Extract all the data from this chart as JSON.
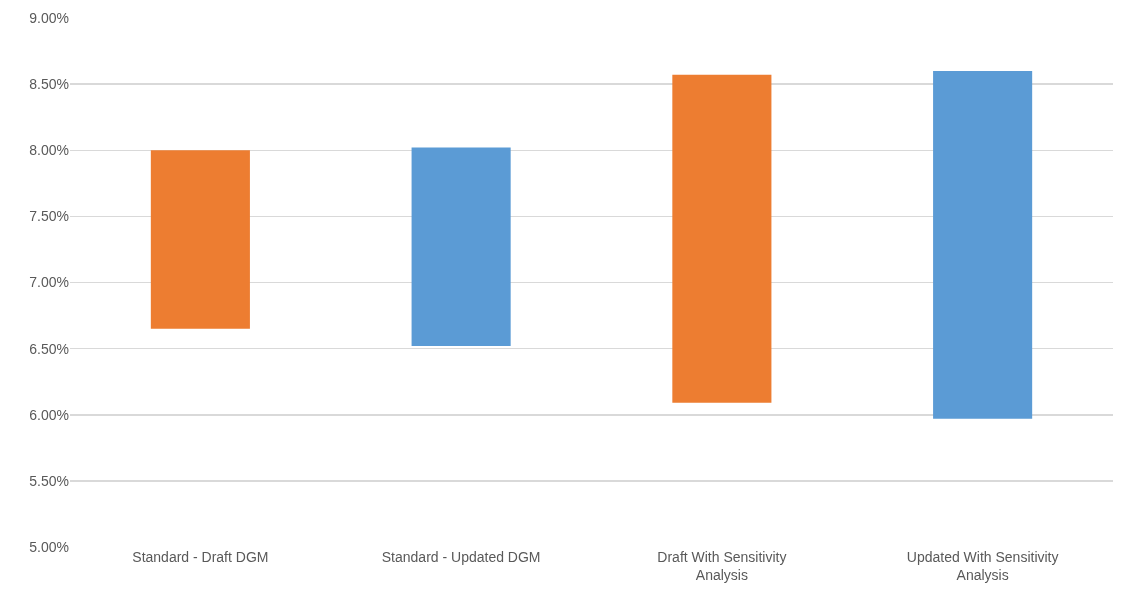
{
  "chart_data": {
    "type": "bar",
    "categories": [
      "Standard - Draft DGM",
      "Standard - Updated DGM",
      "Draft With Sensitivity Analysis",
      "Updated With Sensitivity Analysis"
    ],
    "values": [
      1.35,
      1.5,
      2.48,
      2.63
    ],
    "base": [
      6.65,
      6.52,
      6.09,
      5.97
    ],
    "colors": [
      "#ed7d31",
      "#5b9bd5",
      "#ed7d31",
      "#5b9bd5"
    ],
    "ylim": [
      5,
      9
    ],
    "yticks": [
      {
        "value": 5,
        "label": "5.00%"
      },
      {
        "value": 5.5,
        "label": "5.50%"
      },
      {
        "value": 6,
        "label": "6.00%"
      },
      {
        "value": 6.5,
        "label": "6.50%"
      },
      {
        "value": 7,
        "label": "7.00%"
      },
      {
        "value": 7.5,
        "label": "7.50%"
      },
      {
        "value": 8,
        "label": "8.00%"
      },
      {
        "value": 8.5,
        "label": "8.50%"
      },
      {
        "value": 9,
        "label": "9.00%"
      }
    ],
    "grid": "y"
  }
}
